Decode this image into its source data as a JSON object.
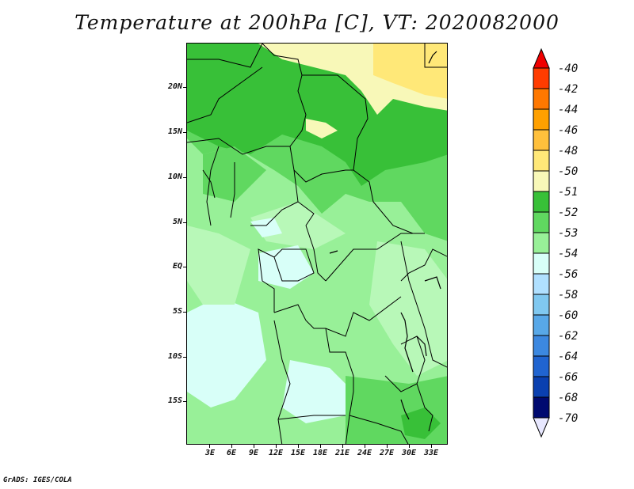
{
  "title": "Temperature at 200hPa [C], VT: 2020082000",
  "credit": "GrADS: IGES/COLA",
  "map": {
    "lat_labels": [
      "20N",
      "15N",
      "10N",
      "5N",
      "EQ",
      "5S",
      "10S",
      "15S"
    ],
    "lon_labels": [
      "3E",
      "6E",
      "9E",
      "12E",
      "15E",
      "18E",
      "21E",
      "24E",
      "27E",
      "30E",
      "33E"
    ]
  },
  "colorbar": {
    "labels": [
      "-40",
      "-42",
      "-44",
      "-46",
      "-48",
      "-50",
      "-51",
      "-52",
      "-53",
      "-54",
      "-56",
      "-58",
      "-60",
      "-62",
      "-64",
      "-66",
      "-68",
      "-70"
    ],
    "colors": [
      "#f00000",
      "#ff3c00",
      "#ff7800",
      "#ffa000",
      "#ffc03c",
      "#ffe878",
      "#f8f8b8",
      "#38c038",
      "#60d860",
      "#98f098",
      "#d8fff8",
      "#b0e0ff",
      "#80c8f0",
      "#58a8e8",
      "#3c88e0",
      "#2064d0",
      "#0a40b0",
      "#000a70",
      "#e8e8ff"
    ]
  }
}
